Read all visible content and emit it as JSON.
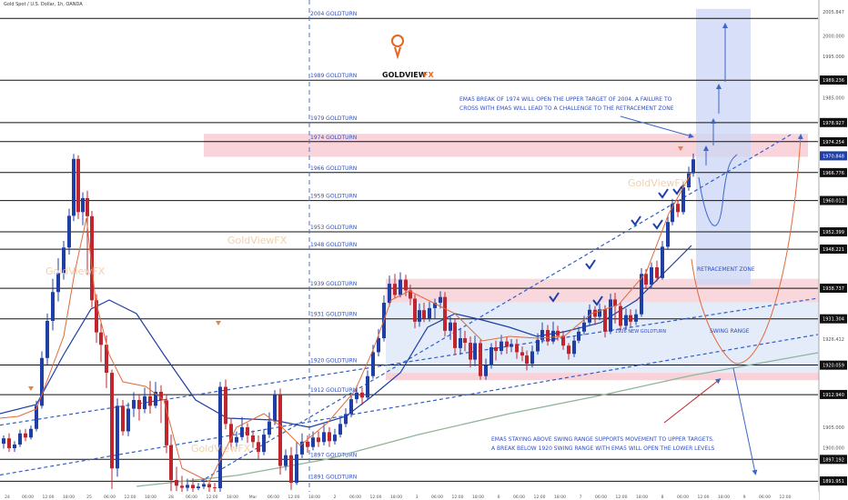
{
  "header": {
    "symbol": "Gold Spot / U.S. Dollar, 1h, OANDA"
  },
  "brand": {
    "name": "GOLDVIEW",
    "suffix": "FX",
    "watermark": "GoldViewFX"
  },
  "chart_data": {
    "type": "candlestick",
    "ylim": [
      1888,
      2008
    ],
    "grid": false,
    "levels": [
      {
        "label": "2004 GOLDTURN",
        "value": 2004.2
      },
      {
        "label": "1989 GOLDTURN",
        "value": 1989.2
      },
      {
        "label": "1979 GOLDTURN",
        "value": 1978.9
      },
      {
        "label": "1974 GOLDTURN",
        "value": 1974.3
      },
      {
        "label": "1966 GOLDTURN",
        "value": 1966.8
      },
      {
        "label": "1959 GOLDTURN",
        "value": 1960
      },
      {
        "label": "1953 GOLDTURN",
        "value": 1952.4
      },
      {
        "label": "1948 GOLDTURN",
        "value": 1948.2
      },
      {
        "label": "1939 GOLDTURN",
        "value": 1938.7
      },
      {
        "label": "1931 GOLDTURN",
        "value": 1931.3
      },
      {
        "label": "1920 GOLDTURN",
        "value": 1920.1
      },
      {
        "label": "1912 GOLDTURN",
        "value": 1912.9
      },
      {
        "label": "1897 GOLDTURN",
        "value": 1897.2
      },
      {
        "label": "1891 GOLDTURN",
        "value": 1891.9
      }
    ],
    "price_axis": [
      "2005.847",
      "2000.000",
      "1995.000",
      "1989.236",
      "1985.000",
      "1978.927",
      "1974.254",
      "1970.848",
      "1966.776",
      "1960.012",
      "1952.399",
      "1948.221",
      "1938.737",
      "1931.304",
      "1926.412",
      "1920.059",
      "1912.940",
      "1905.000",
      "1900.000",
      "1897.192",
      "1891.951"
    ],
    "price_axis_highlight": "1970.848",
    "time_axis": [
      "24",
      "06:00",
      "12:00",
      "18:00",
      "25",
      "06:00",
      "12:00",
      "18:00",
      "28",
      "06:00",
      "12:00",
      "18:00",
      "Mar",
      "06:00",
      "12:00",
      "18:00",
      "2",
      "06:00",
      "12:00",
      "18:00",
      "3",
      "06:00",
      "12:00",
      "18:00",
      "6",
      "06:00",
      "12:00",
      "18:00",
      "7",
      "06:00",
      "12:00",
      "18:00",
      "8",
      "06:00",
      "12:00",
      "18:00",
      "9",
      "06:00",
      "12:00"
    ],
    "annotations": {
      "top_note": [
        "EMA5 BREAK OF 1974 WILL OPEN THE UPPER TARGET OF 2004. A FAILURE TO",
        "CROSS WITH EMA5 WILL LEAD TO A CHALLENGE TO THE RETRACEMENT ZONE"
      ],
      "retracement": "RETRACEMENT ZONE",
      "swing": "SWING RANGE",
      "new_goldturn": "1926 NEW GOLDTURN",
      "bottom_note": [
        "EMA5 STAYING ABOVE SWING RANGE SUPPORTS MOVEMENT TO UPPER TARGETS.",
        "A BREAK BELOW 1920 SWING RANGE WITH EMA5 WILL OPEN THE LOWER LEVELS"
      ]
    },
    "colors": {
      "up": "#1f3fa6",
      "down": "#c0262f",
      "ema_fast": "#e06a3c",
      "ema_slow": "#1f3fa6",
      "ema_long": "#8fb59a",
      "zone_pink": "#f7c7cf",
      "zone_blue": "#c9d6f5",
      "note": "#2f4fbf"
    }
  }
}
